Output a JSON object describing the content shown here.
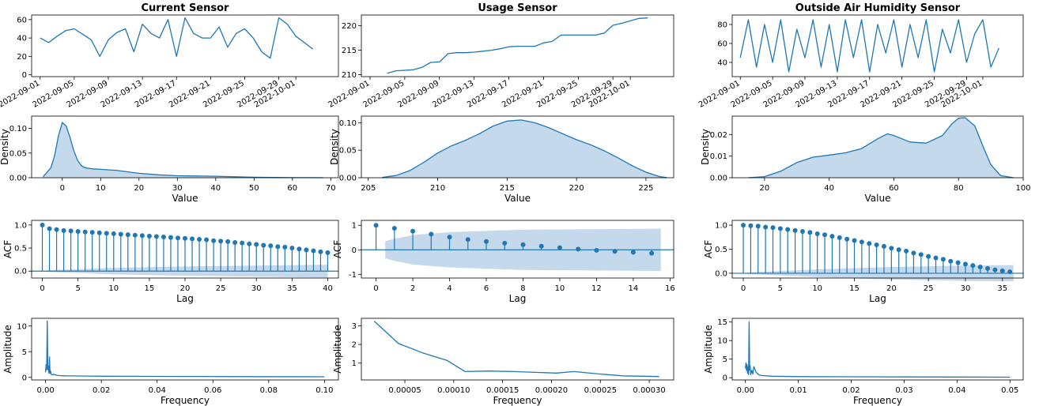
{
  "chart_data": [
    {
      "type": "line",
      "title": "Current Sensor",
      "xlabel": "",
      "ylabel": "",
      "xlim": [
        "2022-08-31",
        "2022-10-06"
      ],
      "ylim": [
        -2,
        65
      ],
      "xticks": [
        "2022-09-01",
        "2022-09-05",
        "2022-09-09",
        "2022-09-13",
        "2022-09-17",
        "2022-09-21",
        "2022-09-25",
        "2022-09-29",
        "2022-10-01"
      ],
      "yticks": [
        0,
        20,
        40,
        60
      ],
      "x": [
        "2022-09-01",
        "2022-09-02",
        "2022-09-03",
        "2022-09-04",
        "2022-09-05",
        "2022-09-06",
        "2022-09-07",
        "2022-09-08",
        "2022-09-09",
        "2022-09-10",
        "2022-09-11",
        "2022-09-12",
        "2022-09-13",
        "2022-09-14",
        "2022-09-15",
        "2022-09-16",
        "2022-09-17",
        "2022-09-18",
        "2022-09-19",
        "2022-09-20",
        "2022-09-21",
        "2022-09-22",
        "2022-09-23",
        "2022-09-24",
        "2022-09-25",
        "2022-09-26",
        "2022-09-27",
        "2022-09-28",
        "2022-09-29",
        "2022-09-30",
        "2022-10-01",
        "2022-10-02",
        "2022-10-03"
      ],
      "y": [
        40,
        35,
        42,
        48,
        50,
        44,
        38,
        20,
        38,
        46,
        50,
        25,
        55,
        45,
        40,
        60,
        20,
        62,
        45,
        40,
        40,
        52,
        30,
        45,
        50,
        40,
        25,
        18,
        62,
        55,
        42,
        35,
        28
      ],
      "grid": false,
      "legend": "none"
    },
    {
      "type": "line",
      "title": "Usage Sensor",
      "xlabel": "",
      "ylabel": "",
      "xlim": [
        "2022-08-31",
        "2022-10-06"
      ],
      "ylim": [
        209.6,
        222.2
      ],
      "xticks": [
        "2022-09-01",
        "2022-09-05",
        "2022-09-09",
        "2022-09-13",
        "2022-09-17",
        "2022-09-21",
        "2022-09-25",
        "2022-09-29",
        "2022-10-01"
      ],
      "yticks": [
        210,
        215,
        220
      ],
      "x": [
        "2022-09-03",
        "2022-09-04",
        "2022-09-05",
        "2022-09-06",
        "2022-09-07",
        "2022-09-08",
        "2022-09-09",
        "2022-09-10",
        "2022-09-11",
        "2022-09-12",
        "2022-09-13",
        "2022-09-14",
        "2022-09-15",
        "2022-09-16",
        "2022-09-17",
        "2022-09-18",
        "2022-09-19",
        "2022-09-20",
        "2022-09-21",
        "2022-09-22",
        "2022-09-23",
        "2022-09-24",
        "2022-09-25",
        "2022-09-26",
        "2022-09-27",
        "2022-09-28",
        "2022-09-29",
        "2022-09-30",
        "2022-10-01",
        "2022-10-02",
        "2022-10-03"
      ],
      "y": [
        210.3,
        210.8,
        210.9,
        211.0,
        211.5,
        212.5,
        212.6,
        214.3,
        214.5,
        214.5,
        214.6,
        214.8,
        215.0,
        215.3,
        215.7,
        215.8,
        215.8,
        215.8,
        216.5,
        216.8,
        218.1,
        218.1,
        218.1,
        218.1,
        218.1,
        218.5,
        220.1,
        220.5,
        221.0,
        221.5,
        221.6
      ],
      "grid": false,
      "legend": "none"
    },
    {
      "type": "line",
      "title": "Outside Air Humidity Sensor",
      "xlabel": "",
      "ylabel": "",
      "xlim": [
        "2022-08-31",
        "2022-10-06"
      ],
      "ylim": [
        25,
        90
      ],
      "xticks": [
        "2022-09-01",
        "2022-09-05",
        "2022-09-09",
        "2022-09-13",
        "2022-09-17",
        "2022-09-21",
        "2022-09-25",
        "2022-09-29",
        "2022-10-01"
      ],
      "yticks": [
        40,
        60,
        80
      ],
      "x": [
        "2022-09-01",
        "2022-09-02",
        "2022-09-03",
        "2022-09-04",
        "2022-09-05",
        "2022-09-06",
        "2022-09-07",
        "2022-09-08",
        "2022-09-09",
        "2022-09-10",
        "2022-09-11",
        "2022-09-12",
        "2022-09-13",
        "2022-09-14",
        "2022-09-15",
        "2022-09-16",
        "2022-09-17",
        "2022-09-18",
        "2022-09-19",
        "2022-09-20",
        "2022-09-21",
        "2022-09-22",
        "2022-09-23",
        "2022-09-24",
        "2022-09-25",
        "2022-09-26",
        "2022-09-27",
        "2022-09-28",
        "2022-09-29",
        "2022-09-30",
        "2022-10-01",
        "2022-10-02",
        "2022-10-03"
      ],
      "y": [
        45,
        85,
        35,
        80,
        40,
        85,
        30,
        75,
        45,
        85,
        35,
        80,
        30,
        85,
        45,
        85,
        30,
        80,
        50,
        85,
        35,
        80,
        45,
        85,
        30,
        75,
        50,
        85,
        40,
        70,
        85,
        35,
        55
      ],
      "grid": false,
      "legend": "none"
    },
    {
      "type": "area",
      "title": "",
      "xlabel": "Value",
      "ylabel": "Density",
      "xlim": [
        -8,
        72
      ],
      "ylim": [
        0,
        0.125
      ],
      "xticks": [
        0,
        10,
        20,
        30,
        40,
        50,
        60,
        70
      ],
      "yticks": [
        0.0,
        0.05,
        0.1
      ],
      "x": [
        -5,
        -3,
        -2,
        -1,
        0,
        1,
        2,
        3,
        4,
        5,
        6,
        8,
        10,
        12,
        14,
        16,
        18,
        20,
        25,
        30,
        35,
        40,
        45,
        50,
        55,
        60,
        65,
        68
      ],
      "y": [
        0.002,
        0.02,
        0.045,
        0.085,
        0.112,
        0.105,
        0.082,
        0.055,
        0.035,
        0.024,
        0.02,
        0.018,
        0.017,
        0.016,
        0.015,
        0.013,
        0.011,
        0.009,
        0.006,
        0.004,
        0.0035,
        0.003,
        0.002,
        0.001,
        0.0005,
        0.0002,
        0.0001,
        0
      ],
      "grid": false,
      "legend": "none"
    },
    {
      "type": "area",
      "title": "",
      "xlabel": "Value",
      "ylabel": "Density",
      "xlim": [
        204.5,
        227
      ],
      "ylim": [
        0,
        0.112
      ],
      "xticks": [
        205,
        210,
        215,
        220,
        225
      ],
      "yticks": [
        0.0,
        0.05,
        0.1
      ],
      "x": [
        206,
        207,
        208,
        209,
        210,
        211,
        212,
        213,
        214,
        215,
        216,
        217,
        218,
        219,
        220,
        221,
        222,
        223,
        224,
        225,
        226,
        226.5
      ],
      "y": [
        0.0005,
        0.004,
        0.013,
        0.028,
        0.045,
        0.058,
        0.068,
        0.08,
        0.094,
        0.103,
        0.105,
        0.1,
        0.091,
        0.08,
        0.069,
        0.06,
        0.049,
        0.036,
        0.022,
        0.01,
        0.002,
        0.0003
      ],
      "grid": false,
      "legend": "none"
    },
    {
      "type": "area",
      "title": "",
      "xlabel": "Value",
      "ylabel": "Density",
      "xlim": [
        10,
        100
      ],
      "ylim": [
        0,
        0.0285
      ],
      "xticks": [
        20,
        40,
        60,
        80,
        100
      ],
      "yticks": [
        0.0,
        0.01,
        0.02
      ],
      "x": [
        15,
        20,
        25,
        30,
        35,
        40,
        45,
        50,
        55,
        58,
        60,
        65,
        70,
        75,
        78,
        80,
        82,
        85,
        88,
        90,
        93,
        97
      ],
      "y": [
        0,
        0.0005,
        0.003,
        0.007,
        0.0095,
        0.0105,
        0.0115,
        0.0135,
        0.018,
        0.0203,
        0.0195,
        0.0165,
        0.016,
        0.0195,
        0.025,
        0.0275,
        0.0278,
        0.024,
        0.013,
        0.006,
        0.001,
        0
      ],
      "grid": false,
      "legend": "none"
    },
    {
      "type": "stem",
      "title": "",
      "xlabel": "Lag",
      "ylabel": "ACF",
      "xlim": [
        -1.5,
        41.5
      ],
      "ylim": [
        -0.15,
        1.1
      ],
      "xticks": [
        0,
        5,
        10,
        15,
        20,
        25,
        30,
        35,
        40
      ],
      "yticks": [
        0.0,
        0.5,
        1.0
      ],
      "x": [
        0,
        1,
        2,
        3,
        4,
        5,
        6,
        7,
        8,
        9,
        10,
        11,
        12,
        13,
        14,
        15,
        16,
        17,
        18,
        19,
        20,
        21,
        22,
        23,
        24,
        25,
        26,
        27,
        28,
        29,
        30,
        31,
        32,
        33,
        34,
        35,
        36,
        37,
        38,
        39,
        40
      ],
      "y": [
        1.0,
        0.92,
        0.9,
        0.88,
        0.87,
        0.86,
        0.85,
        0.84,
        0.83,
        0.82,
        0.81,
        0.8,
        0.79,
        0.78,
        0.77,
        0.76,
        0.75,
        0.74,
        0.73,
        0.72,
        0.71,
        0.7,
        0.69,
        0.68,
        0.66,
        0.65,
        0.64,
        0.62,
        0.61,
        0.59,
        0.58,
        0.56,
        0.55,
        0.53,
        0.52,
        0.5,
        0.48,
        0.46,
        0.44,
        0.42,
        0.4
      ],
      "conf_band": [
        [
          0,
          0
        ],
        [
          1,
          0.02
        ],
        [
          10,
          0.07
        ],
        [
          20,
          0.1
        ],
        [
          30,
          0.12
        ],
        [
          40,
          0.14
        ]
      ],
      "grid": false,
      "legend": "none"
    },
    {
      "type": "stem",
      "title": "",
      "xlabel": "Lag",
      "ylabel": "ACF",
      "xlim": [
        -0.8,
        16.2
      ],
      "ylim": [
        -1.15,
        1.2
      ],
      "xticks": [
        0,
        2,
        4,
        6,
        8,
        10,
        12,
        14,
        16
      ],
      "yticks": [
        -1,
        0,
        1
      ],
      "x": [
        0,
        1,
        2,
        3,
        4,
        5,
        6,
        7,
        8,
        9,
        10,
        11,
        12,
        13,
        14,
        15
      ],
      "y": [
        1.0,
        0.88,
        0.76,
        0.64,
        0.52,
        0.42,
        0.34,
        0.27,
        0.21,
        0.15,
        0.09,
        0.03,
        -0.02,
        -0.06,
        -0.1,
        -0.14
      ],
      "conf_band": [
        [
          0.5,
          0.35
        ],
        [
          1,
          0.45
        ],
        [
          2,
          0.6
        ],
        [
          4,
          0.72
        ],
        [
          8,
          0.82
        ],
        [
          15.5,
          0.86
        ]
      ],
      "grid": false,
      "legend": "none"
    },
    {
      "type": "stem",
      "title": "",
      "xlabel": "Lag",
      "ylabel": "ACF",
      "xlim": [
        -1.5,
        37.8
      ],
      "ylim": [
        -0.1,
        1.1
      ],
      "xticks": [
        0,
        5,
        10,
        15,
        20,
        25,
        30,
        35
      ],
      "yticks": [
        0.0,
        0.5,
        1.0
      ],
      "x": [
        0,
        1,
        2,
        3,
        4,
        5,
        6,
        7,
        8,
        9,
        10,
        11,
        12,
        13,
        14,
        15,
        16,
        17,
        18,
        19,
        20,
        21,
        22,
        23,
        24,
        25,
        26,
        27,
        28,
        29,
        30,
        31,
        32,
        33,
        34,
        35,
        36
      ],
      "y": [
        1.0,
        0.99,
        0.98,
        0.96,
        0.95,
        0.93,
        0.91,
        0.89,
        0.87,
        0.85,
        0.82,
        0.8,
        0.77,
        0.74,
        0.71,
        0.68,
        0.65,
        0.62,
        0.59,
        0.56,
        0.52,
        0.49,
        0.46,
        0.42,
        0.39,
        0.35,
        0.32,
        0.29,
        0.25,
        0.22,
        0.19,
        0.16,
        0.13,
        0.1,
        0.07,
        0.05,
        0.03
      ],
      "conf_band": [
        [
          0,
          0
        ],
        [
          1,
          0.02
        ],
        [
          10,
          0.08
        ],
        [
          20,
          0.13
        ],
        [
          30,
          0.16
        ],
        [
          36.5,
          0.17
        ]
      ],
      "grid": false,
      "legend": "none"
    },
    {
      "type": "line",
      "title": "",
      "xlabel": "Frequency",
      "ylabel": "Amplitude",
      "xlim": [
        -0.005,
        0.105
      ],
      "ylim": [
        -0.5,
        11.5
      ],
      "xticks": [
        0.0,
        0.02,
        0.04,
        0.06,
        0.08,
        0.1
      ],
      "yticks": [
        0,
        5,
        10
      ],
      "x": [
        0,
        0.0002,
        0.0004,
        0.0006,
        0.0008,
        0.001,
        0.0012,
        0.0014,
        0.0016,
        0.0018,
        0.002,
        0.0025,
        0.003,
        0.004,
        0.005,
        0.007,
        0.01,
        0.015,
        0.02,
        0.03,
        0.05,
        0.07,
        0.1
      ],
      "y": [
        1.0,
        2.5,
        1.5,
        11.0,
        1.5,
        2.2,
        0.8,
        4.0,
        0.8,
        1.2,
        0.6,
        0.5,
        0.6,
        0.4,
        0.35,
        0.3,
        0.28,
        0.25,
        0.22,
        0.2,
        0.18,
        0.15,
        0.12
      ],
      "grid": false,
      "legend": "none"
    },
    {
      "type": "line",
      "title": "",
      "xlabel": "Frequency",
      "ylabel": "Amplitude",
      "xlim": [
        5.5e-06,
        0.000325
      ],
      "ylim": [
        0.1,
        3.4
      ],
      "xticks": [
        "0.00005",
        "0.00010",
        "0.00015",
        "0.00020",
        "0.00025",
        "0.00030"
      ],
      "yticks": [
        1,
        2,
        3
      ],
      "x": [
        1.86e-05,
        4.34e-05,
        6.82e-05,
        9.3e-05,
        0.0001116,
        0.0001364,
        0.0001612,
        0.000186,
        0.000205,
        0.000223,
        0.000248,
        0.000273,
        0.00031
      ],
      "y": [
        3.25,
        2.05,
        1.55,
        1.15,
        0.55,
        0.58,
        0.55,
        0.5,
        0.47,
        0.55,
        0.42,
        0.32,
        0.28
      ],
      "grid": false,
      "legend": "none"
    },
    {
      "type": "line",
      "title": "",
      "xlabel": "Frequency",
      "ylabel": "Amplitude",
      "xlim": [
        -0.0025,
        0.0525
      ],
      "ylim": [
        -0.6,
        16
      ],
      "xticks": [
        "0.00",
        "0.01",
        "0.02",
        "0.03",
        "0.04",
        "0.05"
      ],
      "yticks": [
        0,
        5,
        10,
        15
      ],
      "x": [
        0,
        0.0001,
        0.0002,
        0.0003,
        0.0004,
        0.0005,
        0.0006,
        0.0007,
        0.0008,
        0.0009,
        0.001,
        0.0012,
        0.0014,
        0.0016,
        0.002,
        0.0025,
        0.003,
        0.005,
        0.01,
        0.02,
        0.03,
        0.04,
        0.05
      ],
      "y": [
        2.5,
        4.0,
        2.0,
        3.5,
        1.2,
        3.0,
        0.8,
        15.0,
        2.0,
        3.2,
        0.8,
        2.0,
        1.0,
        3.0,
        1.5,
        0.8,
        0.6,
        0.4,
        0.3,
        0.25,
        0.2,
        0.18,
        0.15
      ],
      "grid": false,
      "legend": "none"
    }
  ],
  "colors": {
    "line": "#1f77b4",
    "fill": "#c5d9ec",
    "band": "#c5d9ec"
  }
}
